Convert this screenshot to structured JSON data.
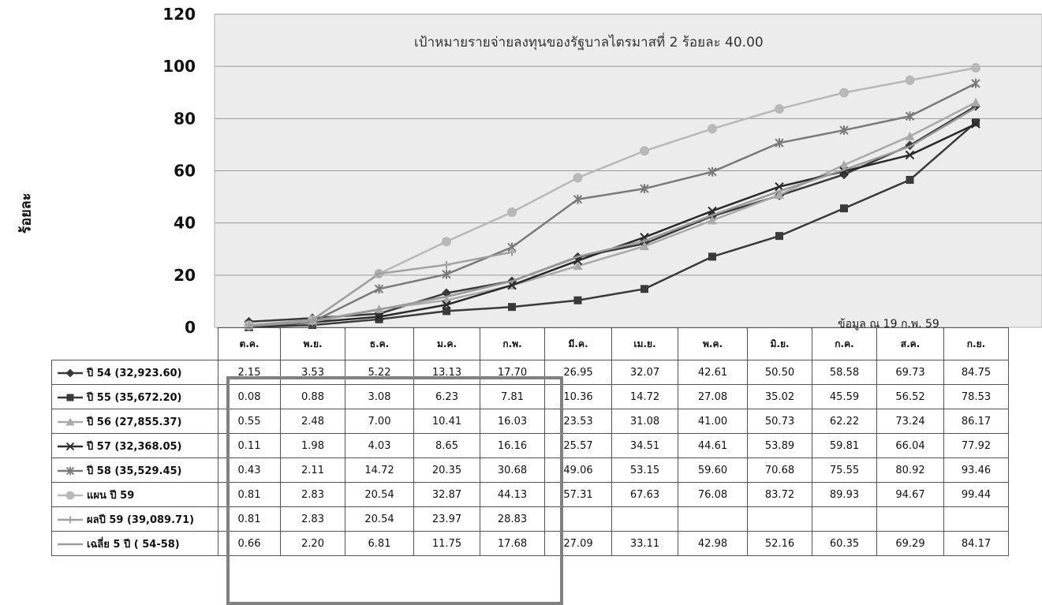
{
  "chart_data": {
    "type": "line",
    "title": "เป้าหมายรายจ่ายลงทุนของรัฐบาลไตรมาสที่ 2  ร้อยละ  40.00",
    "ylabel": "ร้อยละ",
    "xlabel": "",
    "ylim": [
      0,
      120
    ],
    "yticks": [
      0,
      20,
      40,
      60,
      80,
      100,
      120
    ],
    "grid": true,
    "legend": "table",
    "categories": [
      "ต.ค.",
      "พ.ย.",
      "ธ.ค.",
      "ม.ค.",
      "ก.พ.",
      "มี.ค.",
      "เม.ย.",
      "พ.ค.",
      "มิ.ย.",
      "ก.ค.",
      "ส.ค.",
      "ก.ย."
    ],
    "annotation": "ข้อมูล ณ  19  ก.พ. 59",
    "series": [
      {
        "name": "ปี 54 (32,923.60)",
        "color": "#3a3a3a",
        "marker": "diamond",
        "values": [
          2.15,
          3.53,
          5.22,
          13.13,
          17.7,
          26.95,
          32.07,
          42.61,
          50.5,
          58.58,
          69.73,
          84.75
        ]
      },
      {
        "name": "ปี 55 (35,672.20)",
        "color": "#3a3a3a",
        "marker": "square",
        "values": [
          0.08,
          0.88,
          3.08,
          6.23,
          7.81,
          10.36,
          14.72,
          27.08,
          35.02,
          45.59,
          56.52,
          78.53
        ]
      },
      {
        "name": "ปี 56 (27,855.37)",
        "color": "#a9a9a9",
        "marker": "triangle",
        "values": [
          0.55,
          2.48,
          7.0,
          10.41,
          16.03,
          23.53,
          31.08,
          41.0,
          50.73,
          62.22,
          73.24,
          86.17
        ]
      },
      {
        "name": "ปี 57 (32,368.05)",
        "color": "#2a2a2a",
        "marker": "x",
        "values": [
          0.11,
          1.98,
          4.03,
          8.65,
          16.16,
          25.57,
          34.51,
          44.61,
          53.89,
          59.81,
          66.04,
          77.92
        ]
      },
      {
        "name": "ปี 58 (35,529.45)",
        "color": "#7a7a7a",
        "marker": "star",
        "values": [
          0.43,
          2.11,
          14.72,
          20.35,
          30.68,
          49.06,
          53.15,
          59.6,
          70.68,
          75.55,
          80.92,
          93.46
        ]
      },
      {
        "name": "แผน ปี 59",
        "color": "#b8b8b8",
        "marker": "circle",
        "values": [
          0.81,
          2.83,
          20.54,
          32.87,
          44.13,
          57.31,
          67.63,
          76.08,
          83.72,
          89.93,
          94.67,
          99.44
        ]
      },
      {
        "name": "ผลปี 59 (39,089.71)",
        "color": "#a0a0a0",
        "marker": "plus",
        "values": [
          0.81,
          2.83,
          20.54,
          23.97,
          28.83,
          null,
          null,
          null,
          null,
          null,
          null,
          null
        ]
      },
      {
        "name": "เฉลี่ย 5  ปี  ( 54-58)",
        "color": "#9a9a9a",
        "marker": "none",
        "values": [
          0.66,
          2.2,
          6.81,
          11.75,
          17.68,
          27.09,
          33.11,
          42.98,
          52.16,
          60.35,
          69.29,
          84.17
        ]
      }
    ]
  }
}
